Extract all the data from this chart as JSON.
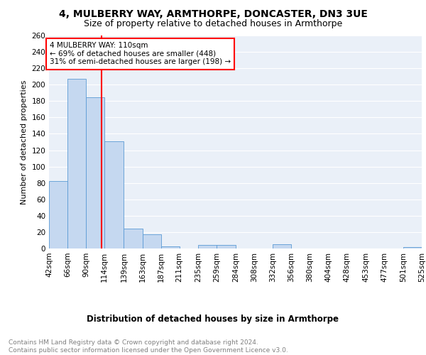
{
  "title1": "4, MULBERRY WAY, ARMTHORPE, DONCASTER, DN3 3UE",
  "title2": "Size of property relative to detached houses in Armthorpe",
  "xlabel": "Distribution of detached houses by size in Armthorpe",
  "ylabel": "Number of detached properties",
  "bins": [
    42,
    66,
    90,
    114,
    139,
    163,
    187,
    211,
    235,
    259,
    284,
    308,
    332,
    356,
    380,
    404,
    428,
    453,
    477,
    501,
    525
  ],
  "counts": [
    82,
    207,
    185,
    131,
    24,
    17,
    3,
    0,
    4,
    4,
    0,
    0,
    5,
    0,
    0,
    0,
    0,
    0,
    0,
    2
  ],
  "bin_labels": [
    "42sqm",
    "66sqm",
    "90sqm",
    "114sqm",
    "139sqm",
    "163sqm",
    "187sqm",
    "211sqm",
    "235sqm",
    "259sqm",
    "284sqm",
    "308sqm",
    "332sqm",
    "356sqm",
    "380sqm",
    "404sqm",
    "428sqm",
    "453sqm",
    "477sqm",
    "501sqm",
    "525sqm"
  ],
  "bar_color": "#c5d8f0",
  "bar_edge_color": "#5b9bd5",
  "vline_color": "red",
  "vline_x": 110,
  "annotation_text": "4 MULBERRY WAY: 110sqm\n← 69% of detached houses are smaller (448)\n31% of semi-detached houses are larger (198) →",
  "annotation_box_color": "white",
  "annotation_border_color": "red",
  "ylim": [
    0,
    260
  ],
  "yticks": [
    0,
    20,
    40,
    60,
    80,
    100,
    120,
    140,
    160,
    180,
    200,
    220,
    240,
    260
  ],
  "background_color": "#eaf0f8",
  "footer_text": "Contains HM Land Registry data © Crown copyright and database right 2024.\nContains public sector information licensed under the Open Government Licence v3.0.",
  "title1_fontsize": 10,
  "title2_fontsize": 9,
  "xlabel_fontsize": 8.5,
  "ylabel_fontsize": 8,
  "tick_fontsize": 7.5,
  "annotation_fontsize": 7.5,
  "footer_fontsize": 6.5
}
